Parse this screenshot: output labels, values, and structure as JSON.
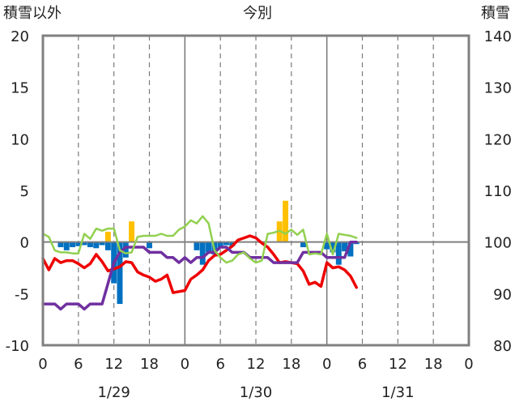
{
  "chart_data": {
    "type": "bar+line",
    "title": "今別",
    "left_axis_label": "積雪以外",
    "right_axis_label": "積雪",
    "left_ylim": [
      -10,
      20
    ],
    "right_ylim": [
      80,
      140
    ],
    "left_ticks": [
      "20",
      "15",
      "10",
      "5",
      "0",
      "-5",
      "-10"
    ],
    "right_ticks": [
      "140",
      "130",
      "120",
      "110",
      "100",
      "90",
      "80"
    ],
    "x_range_hours": [
      0,
      72
    ],
    "x_tick_labels": [
      "0",
      "6",
      "12",
      "18",
      "0",
      "6",
      "12",
      "18",
      "0",
      "6",
      "12",
      "18",
      "0"
    ],
    "date_labels": [
      {
        "label": "1/29",
        "hour": 12
      },
      {
        "label": "1/30",
        "hour": 36
      },
      {
        "label": "1/31",
        "hour": 60
      }
    ],
    "grid": "dashed vertical lines every 6 hours; solid lines at day boundaries",
    "colors": {
      "red": "#ee0000",
      "purple": "#7030a0",
      "green": "#92d050",
      "blue": "#0070c0",
      "orange": "#ffc000"
    },
    "series": [
      {
        "color": "red",
        "axis": "left",
        "x": [
          0,
          1,
          2,
          3,
          4,
          5,
          6,
          7,
          8,
          9,
          10,
          11,
          12,
          13,
          14,
          15,
          16,
          17,
          18,
          19,
          20,
          21,
          22,
          23,
          24,
          25,
          26,
          27,
          28,
          29,
          30,
          31,
          32,
          33,
          34,
          35,
          36,
          37,
          38,
          39,
          40,
          41,
          42,
          43,
          44,
          45,
          46,
          47,
          48,
          49,
          50,
          51,
          52,
          53
        ],
        "y": [
          -1.6,
          -2.7,
          -1.6,
          -2.0,
          -1.8,
          -1.8,
          -2.1,
          -2.5,
          -2.1,
          -1.2,
          -1.9,
          -2.8,
          -2.6,
          -2.4,
          -1.9,
          -2.0,
          -2.9,
          -3.2,
          -3.4,
          -3.8,
          -3.6,
          -3.2,
          -4.9,
          -4.8,
          -4.7,
          -3.6,
          -3.2,
          -2.7,
          -1.8,
          -1.3,
          -1.2,
          -0.8,
          -0.4,
          0.2,
          0.4,
          0.6,
          0.4,
          -0.1,
          -0.5,
          -1.2,
          -2.0,
          -1.9,
          -2.0,
          -2.1,
          -2.8,
          -4.1,
          -3.9,
          -4.3,
          -2.0,
          -2.5,
          -2.4,
          -2.7,
          -3.3,
          -4.4
        ]
      },
      {
        "color": "purple",
        "axis": "right",
        "x": [
          0,
          1,
          2,
          3,
          4,
          5,
          6,
          7,
          8,
          9,
          10,
          11,
          12,
          13,
          14,
          15,
          16,
          17,
          18,
          19,
          20,
          21,
          22,
          23,
          24,
          25,
          26,
          27,
          28,
          29,
          30,
          31,
          32,
          33,
          34,
          35,
          36,
          37,
          38,
          39,
          40,
          41,
          42,
          43,
          44,
          45,
          46,
          47,
          48,
          49,
          50,
          51,
          52,
          53
        ],
        "y": [
          88,
          88,
          88,
          87,
          88,
          88,
          88,
          87,
          88,
          88,
          88,
          92,
          96,
          98,
          99,
          99,
          99,
          99,
          98,
          98,
          98,
          97,
          97,
          96,
          97,
          96,
          97,
          97,
          98,
          98,
          99,
          99,
          98,
          98,
          98,
          97,
          97,
          97,
          97,
          96,
          96,
          96,
          96,
          96,
          98,
          98,
          98,
          98,
          97,
          97,
          97,
          97,
          100,
          100
        ]
      },
      {
        "color": "green",
        "axis": "left",
        "x": [
          0,
          1,
          2,
          3,
          4,
          5,
          6,
          7,
          8,
          9,
          10,
          11,
          12,
          13,
          14,
          15,
          16,
          17,
          18,
          19,
          20,
          21,
          22,
          23,
          24,
          25,
          26,
          27,
          28,
          29,
          30,
          31,
          32,
          33,
          34,
          35,
          36,
          37,
          38,
          39,
          40,
          41,
          42,
          43,
          44,
          45,
          46,
          47,
          48,
          49,
          50,
          51,
          52,
          53
        ],
        "y": [
          0.8,
          0.5,
          -0.8,
          -1.0,
          -1.0,
          -1.1,
          -1.1,
          0.8,
          0.3,
          1.3,
          1.1,
          1.3,
          1.3,
          -0.8,
          -1.1,
          -1.0,
          0.5,
          0.6,
          0.6,
          0.6,
          0.8,
          0.6,
          0.6,
          1.2,
          1.5,
          2.1,
          1.8,
          2.5,
          1.8,
          -0.8,
          -1.5,
          -2.0,
          -1.8,
          -1.2,
          -1.0,
          -1.6,
          -2.0,
          -1.8,
          0.8,
          0.9,
          1.1,
          0.8,
          1.2,
          0.7,
          1.2,
          -1.2,
          -1.1,
          -1.2,
          0.8,
          -1.2,
          0.8,
          0.7,
          0.6,
          0.4
        ]
      },
      {
        "color": "blue",
        "axis": "left",
        "kind": "bar",
        "x": [
          3,
          4,
          5,
          6,
          7,
          8,
          9,
          10,
          11,
          12,
          13,
          14,
          18,
          26,
          27,
          28,
          29,
          30,
          31,
          32,
          44,
          48,
          49,
          50,
          51,
          52,
          53
        ],
        "y": [
          -0.5,
          -0.8,
          -0.5,
          -0.4,
          -0.3,
          -0.5,
          -0.6,
          -0.3,
          -0.8,
          -4.0,
          -6.0,
          -1.5,
          -0.6,
          -0.8,
          -2.2,
          -1.0,
          -1.2,
          -0.6,
          -0.3,
          -0.4,
          -0.5,
          -0.7,
          -1.0,
          -2.2,
          -0.9,
          -1.4,
          -0.2
        ]
      },
      {
        "color": "orange",
        "axis": "left",
        "kind": "bar",
        "x": [
          11,
          15,
          40,
          41
        ],
        "y": [
          1.0,
          2.0,
          2.0,
          4.0
        ]
      }
    ]
  }
}
